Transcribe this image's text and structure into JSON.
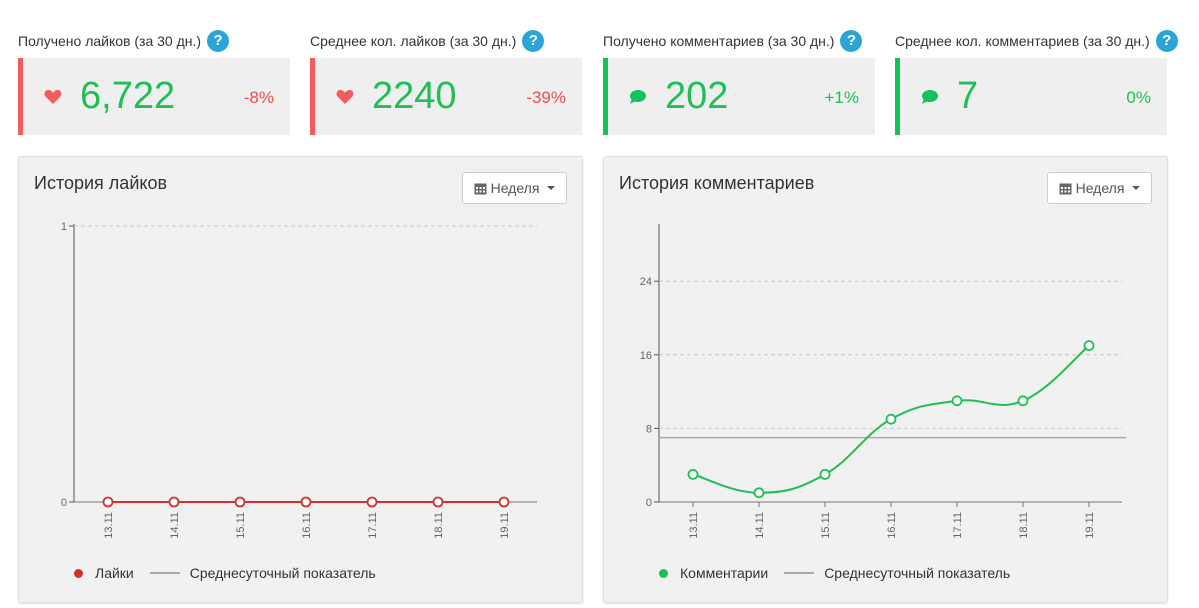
{
  "stats": [
    {
      "label": "Получено лайков (за 30 дн.)",
      "value": "6,722",
      "change": "-8%",
      "icon": "heart-icon"
    },
    {
      "label": "Среднее кол. лайков (за 30 дн.)",
      "value": "2240",
      "change": "-39%",
      "icon": "heart-icon"
    },
    {
      "label": "Получено комментариев (за 30 дн.)",
      "value": "202",
      "change": "+1%",
      "icon": "comment-icon"
    },
    {
      "label": "Среднее кол. комментариев (за 30 дн.)",
      "value": "7",
      "change": "0%",
      "icon": "comment-icon"
    }
  ],
  "help_glyph": "?",
  "colors": {
    "red": "#f25c5c",
    "green": "#15c25a",
    "help": "#2ea3d6",
    "avg_line": "#aaaaaa"
  },
  "panels": {
    "likes": {
      "title": "История лайков",
      "period": "Неделя"
    },
    "comments": {
      "title": "История комментариев",
      "period": "Неделя"
    }
  },
  "chart_data": [
    {
      "type": "line",
      "categories": [
        "13.11",
        "14.11",
        "15.11",
        "16.11",
        "17.11",
        "18.11",
        "19.11"
      ],
      "series": [
        {
          "name": "Лайки",
          "values": [
            0,
            0,
            0,
            0,
            0,
            0,
            0
          ],
          "color": "#d32f2f"
        }
      ],
      "average_label": "Среднесуточный показатель",
      "y_ticks": [
        0,
        1
      ],
      "ylim": [
        0,
        1
      ],
      "grid": true
    },
    {
      "type": "line",
      "categories": [
        "13.11",
        "14.11",
        "15.11",
        "16.11",
        "17.11",
        "18.11",
        "19.11"
      ],
      "series": [
        {
          "name": "Комментарии",
          "values": [
            3,
            1,
            3,
            9,
            11,
            11,
            17
          ],
          "color": "#1fbf55"
        }
      ],
      "average_label": "Среднесуточный показатель",
      "average_value": 7,
      "y_ticks": [
        0,
        8,
        16,
        24
      ],
      "ylim": [
        0,
        30
      ],
      "grid": true
    }
  ]
}
